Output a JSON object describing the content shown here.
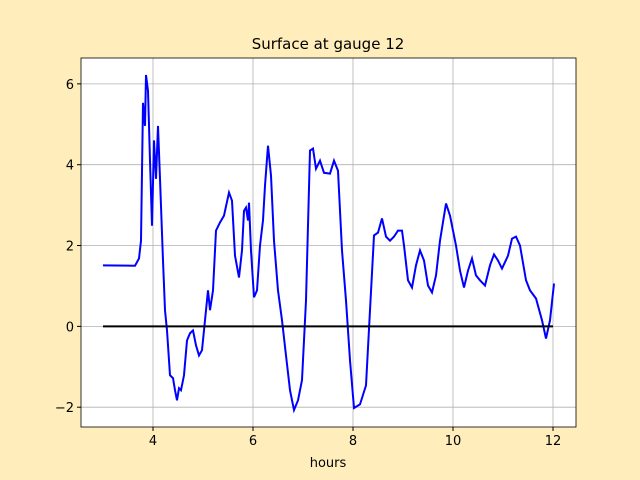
{
  "chart_data": {
    "type": "line",
    "title": "Surface at gauge 12",
    "x_label": "hours",
    "xlim": [
      2.56,
      12.46
    ],
    "ylim": [
      -2.49,
      6.64
    ],
    "xticks": [
      4,
      6,
      8,
      10,
      12
    ],
    "yticks": [
      {
        "value": -2,
        "label": "−2"
      },
      0,
      2,
      4,
      6
    ],
    "grid": true,
    "background": "#ffeebb",
    "series": [
      {
        "color": "#0000ff",
        "x": [
          3.0,
          3.64,
          3.72,
          3.76,
          3.8,
          3.84,
          3.86,
          3.9,
          3.94,
          3.98,
          4.02,
          4.06,
          4.1,
          4.14,
          4.2,
          4.24,
          4.28,
          4.34,
          4.4,
          4.44,
          4.48,
          4.52,
          4.56,
          4.62,
          4.68,
          4.74,
          4.8,
          4.86,
          4.92,
          4.98,
          5.04,
          5.1,
          5.14,
          5.2,
          5.26,
          5.34,
          5.42,
          5.52,
          5.58,
          5.64,
          5.72,
          5.78,
          5.82,
          5.86,
          5.9,
          5.92,
          5.96,
          6.02,
          6.08,
          6.14,
          6.2,
          6.24,
          6.3,
          6.36,
          6.42,
          6.5,
          6.58,
          6.66,
          6.74,
          6.82,
          6.9,
          6.98,
          7.06,
          7.14,
          7.2,
          7.26,
          7.34,
          7.42,
          7.54,
          7.62,
          7.7,
          7.78,
          7.86,
          7.94,
          8.02,
          8.14,
          8.26,
          8.34,
          8.42,
          8.5,
          8.58,
          8.66,
          8.74,
          8.82,
          8.9,
          8.98,
          9.02,
          9.1,
          9.18,
          9.26,
          9.34,
          9.42,
          9.5,
          9.58,
          9.66,
          9.74,
          9.86,
          9.94,
          10.06,
          10.14,
          10.22,
          10.3,
          10.38,
          10.46,
          10.54,
          10.64,
          10.74,
          10.82,
          10.9,
          10.98,
          11.1,
          11.18,
          11.26,
          11.34,
          11.46,
          11.54,
          11.66,
          11.78,
          11.86,
          11.94,
          12.02
        ],
        "values": [
          1.51,
          1.5,
          1.68,
          2.12,
          5.53,
          4.96,
          6.22,
          5.83,
          4.1,
          2.49,
          4.6,
          3.65,
          4.96,
          3.65,
          1.63,
          0.4,
          -0.1,
          -1.21,
          -1.28,
          -1.58,
          -1.83,
          -1.53,
          -1.58,
          -1.21,
          -0.35,
          -0.17,
          -0.1,
          -0.47,
          -0.72,
          -0.59,
          0.15,
          0.89,
          0.4,
          0.89,
          2.37,
          2.57,
          2.74,
          3.31,
          3.11,
          1.75,
          1.21,
          1.88,
          2.86,
          2.94,
          2.62,
          3.06,
          1.88,
          0.72,
          0.89,
          2.0,
          2.62,
          3.48,
          4.47,
          3.73,
          2.12,
          0.89,
          0.15,
          -0.72,
          -1.58,
          -2.07,
          -1.83,
          -1.33,
          0.64,
          4.35,
          4.4,
          3.9,
          4.1,
          3.8,
          3.78,
          4.1,
          3.85,
          1.88,
          0.64,
          -0.84,
          -2.02,
          -1.93,
          -1.46,
          0.4,
          2.25,
          2.32,
          2.67,
          2.22,
          2.12,
          2.22,
          2.37,
          2.37,
          2.0,
          1.14,
          0.96,
          1.51,
          1.88,
          1.63,
          1.01,
          0.84,
          1.26,
          2.12,
          3.04,
          2.74,
          2.0,
          1.38,
          0.96,
          1.38,
          1.68,
          1.26,
          1.14,
          1.01,
          1.51,
          1.78,
          1.63,
          1.43,
          1.75,
          2.17,
          2.22,
          2.0,
          1.14,
          0.89,
          0.69,
          0.15,
          -0.3,
          0.15,
          1.06
        ]
      },
      {
        "color": "#000000",
        "x": [
          3,
          12
        ],
        "values": [
          0,
          0
        ]
      }
    ]
  }
}
